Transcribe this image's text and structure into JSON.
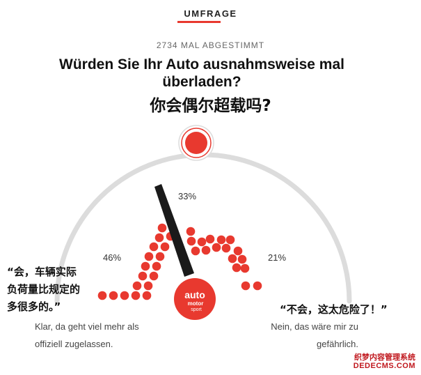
{
  "header": {
    "label": "UMFRAGE",
    "vote_count": "2734 MAL ABGESTIMMT"
  },
  "question": {
    "german": "Würden Sie Ihr Auto ausnahmsweise mal überladen?",
    "chinese": "你会偶尔超载吗?"
  },
  "gauge": {
    "knob_icon": "red-circle-knob",
    "center_logo": [
      "auto",
      "motor",
      "sport"
    ],
    "needle_percent": 33
  },
  "results": {
    "left": {
      "percent": "46%",
      "value": 46
    },
    "middle": {
      "percent": "33%",
      "value": 33
    },
    "right": {
      "percent": "21%",
      "value": 21
    }
  },
  "answers": {
    "yes": {
      "zh_lines": [
        "“会，车辆实际",
        "负荷量比规定的",
        "多很多的。”"
      ],
      "de_lines": [
        "Klar, da geht viel mehr als",
        "offiziell zugelassen."
      ]
    },
    "no": {
      "zh": "“不会，这太危险了！”",
      "de_lines": [
        "Nein, das wäre mir zu",
        "gefährlich."
      ]
    }
  },
  "watermark": {
    "line1": "织梦内容管理系统",
    "line2": "DEDECMS.COM"
  },
  "colors": {
    "accent": "#e8392f",
    "arc": "#dcdcdc",
    "needle": "#1a1a1a"
  }
}
